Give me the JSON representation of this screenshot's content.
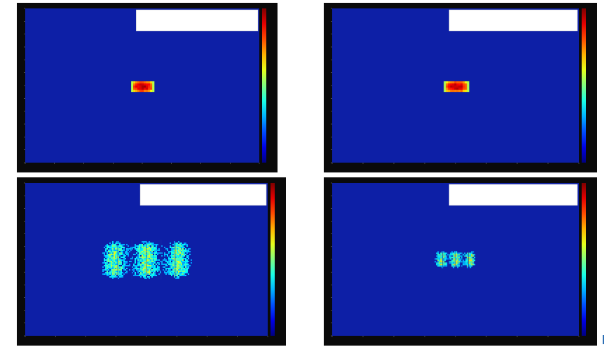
{
  "colors": {
    "frame": "#0a0a0a",
    "plot_background": "#0d1fa6",
    "axis_text": "#8a8a8a",
    "legend_fill": "#ffffff"
  },
  "panels": [
    {
      "id": "top-left",
      "legend": {
        "line1": "",
        "line2": "",
        "line3": ""
      },
      "xlabel": "",
      "ylabel": "",
      "colorbar_labels": [
        "",
        "",
        "",
        "",
        "",
        "",
        "",
        "",
        "",
        ""
      ]
    },
    {
      "id": "top-right",
      "legend": {
        "line1": "",
        "line2": "",
        "line3": ""
      },
      "xlabel": "",
      "ylabel": "",
      "colorbar_labels": [
        "",
        "",
        "",
        "",
        "",
        "",
        "",
        "",
        "",
        ""
      ]
    },
    {
      "id": "bottom-left",
      "legend": {
        "line1": "",
        "line2": "",
        "line3": ""
      },
      "xlabel": "",
      "ylabel": "",
      "colorbar_labels": [
        "",
        "",
        "",
        "",
        "",
        "",
        "",
        "",
        "",
        ""
      ]
    },
    {
      "id": "bottom-right",
      "legend": {
        "line1": "",
        "line2": "",
        "line3": ""
      },
      "xlabel": "",
      "ylabel": "",
      "colorbar_labels": [
        "",
        "",
        "",
        "",
        "",
        "",
        "",
        "",
        "",
        ""
      ]
    }
  ],
  "chart_data": [
    {
      "type": "heatmap",
      "title": "",
      "xlabel": "",
      "ylabel": "",
      "xlim": [
        -1,
        1
      ],
      "ylim": [
        -1,
        1
      ],
      "colormap": "jet",
      "grid": false,
      "legend": "top-right",
      "spot": {
        "center": [
          0,
          0
        ],
        "width": 0.19,
        "height": 0.11,
        "peak": 1.0,
        "stripes": false
      }
    },
    {
      "type": "heatmap",
      "title": "",
      "xlabel": "",
      "ylabel": "",
      "xlim": [
        -1,
        1
      ],
      "ylim": [
        -1,
        1
      ],
      "colormap": "jet",
      "grid": false,
      "legend": "top-right",
      "spot": {
        "center": [
          0,
          0
        ],
        "width": 0.19,
        "height": 0.11,
        "peak": 1.0,
        "stripes": false
      }
    },
    {
      "type": "heatmap",
      "title": "",
      "xlabel": "",
      "ylabel": "",
      "xlim": [
        -1,
        1
      ],
      "ylim": [
        -1,
        1
      ],
      "colormap": "jet",
      "grid": false,
      "legend": "top-right",
      "spot": {
        "center": [
          0,
          0
        ],
        "width": 0.86,
        "height": 0.47,
        "peak": 0.55,
        "stripes": true
      }
    },
    {
      "type": "heatmap",
      "title": "",
      "xlabel": "",
      "ylabel": "",
      "xlim": [
        -1,
        1
      ],
      "ylim": [
        -1,
        1
      ],
      "colormap": "jet",
      "grid": false,
      "legend": "top-right",
      "spot": {
        "center": [
          0,
          0
        ],
        "width": 0.38,
        "height": 0.2,
        "peak": 0.6,
        "stripes": true
      }
    }
  ]
}
